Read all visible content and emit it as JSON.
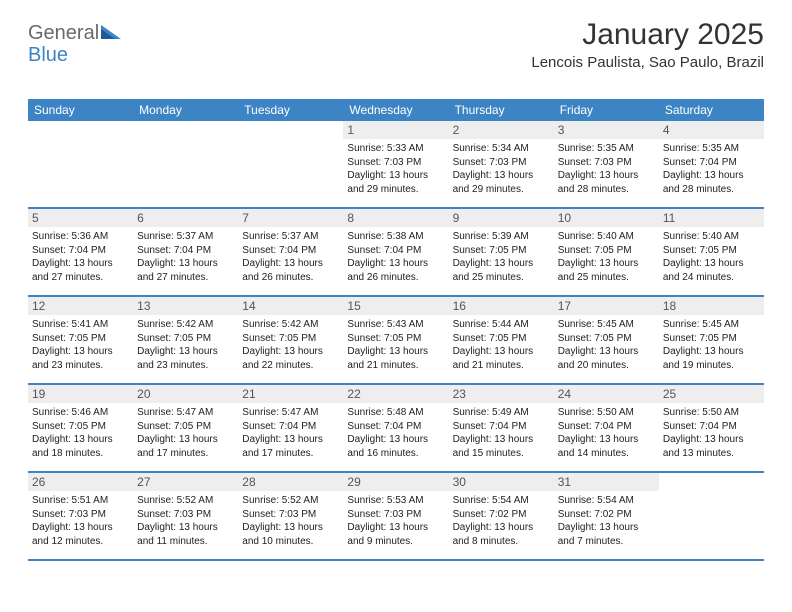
{
  "logo": {
    "text1": "General",
    "text2": "Blue"
  },
  "title": "January 2025",
  "location": "Lencois Paulista, Sao Paulo, Brazil",
  "colors": {
    "accent": "#3d84c4",
    "dayNumBg": "#eeeeee",
    "text": "#222222",
    "logoGray": "#6a6a6a"
  },
  "daysOfWeek": [
    "Sunday",
    "Monday",
    "Tuesday",
    "Wednesday",
    "Thursday",
    "Friday",
    "Saturday"
  ],
  "weeks": [
    [
      {
        "num": "",
        "sunrise": "",
        "sunset": "",
        "daylight": ""
      },
      {
        "num": "",
        "sunrise": "",
        "sunset": "",
        "daylight": ""
      },
      {
        "num": "",
        "sunrise": "",
        "sunset": "",
        "daylight": ""
      },
      {
        "num": "1",
        "sunrise": "Sunrise: 5:33 AM",
        "sunset": "Sunset: 7:03 PM",
        "daylight": "Daylight: 13 hours and 29 minutes."
      },
      {
        "num": "2",
        "sunrise": "Sunrise: 5:34 AM",
        "sunset": "Sunset: 7:03 PM",
        "daylight": "Daylight: 13 hours and 29 minutes."
      },
      {
        "num": "3",
        "sunrise": "Sunrise: 5:35 AM",
        "sunset": "Sunset: 7:03 PM",
        "daylight": "Daylight: 13 hours and 28 minutes."
      },
      {
        "num": "4",
        "sunrise": "Sunrise: 5:35 AM",
        "sunset": "Sunset: 7:04 PM",
        "daylight": "Daylight: 13 hours and 28 minutes."
      }
    ],
    [
      {
        "num": "5",
        "sunrise": "Sunrise: 5:36 AM",
        "sunset": "Sunset: 7:04 PM",
        "daylight": "Daylight: 13 hours and 27 minutes."
      },
      {
        "num": "6",
        "sunrise": "Sunrise: 5:37 AM",
        "sunset": "Sunset: 7:04 PM",
        "daylight": "Daylight: 13 hours and 27 minutes."
      },
      {
        "num": "7",
        "sunrise": "Sunrise: 5:37 AM",
        "sunset": "Sunset: 7:04 PM",
        "daylight": "Daylight: 13 hours and 26 minutes."
      },
      {
        "num": "8",
        "sunrise": "Sunrise: 5:38 AM",
        "sunset": "Sunset: 7:04 PM",
        "daylight": "Daylight: 13 hours and 26 minutes."
      },
      {
        "num": "9",
        "sunrise": "Sunrise: 5:39 AM",
        "sunset": "Sunset: 7:05 PM",
        "daylight": "Daylight: 13 hours and 25 minutes."
      },
      {
        "num": "10",
        "sunrise": "Sunrise: 5:40 AM",
        "sunset": "Sunset: 7:05 PM",
        "daylight": "Daylight: 13 hours and 25 minutes."
      },
      {
        "num": "11",
        "sunrise": "Sunrise: 5:40 AM",
        "sunset": "Sunset: 7:05 PM",
        "daylight": "Daylight: 13 hours and 24 minutes."
      }
    ],
    [
      {
        "num": "12",
        "sunrise": "Sunrise: 5:41 AM",
        "sunset": "Sunset: 7:05 PM",
        "daylight": "Daylight: 13 hours and 23 minutes."
      },
      {
        "num": "13",
        "sunrise": "Sunrise: 5:42 AM",
        "sunset": "Sunset: 7:05 PM",
        "daylight": "Daylight: 13 hours and 23 minutes."
      },
      {
        "num": "14",
        "sunrise": "Sunrise: 5:42 AM",
        "sunset": "Sunset: 7:05 PM",
        "daylight": "Daylight: 13 hours and 22 minutes."
      },
      {
        "num": "15",
        "sunrise": "Sunrise: 5:43 AM",
        "sunset": "Sunset: 7:05 PM",
        "daylight": "Daylight: 13 hours and 21 minutes."
      },
      {
        "num": "16",
        "sunrise": "Sunrise: 5:44 AM",
        "sunset": "Sunset: 7:05 PM",
        "daylight": "Daylight: 13 hours and 21 minutes."
      },
      {
        "num": "17",
        "sunrise": "Sunrise: 5:45 AM",
        "sunset": "Sunset: 7:05 PM",
        "daylight": "Daylight: 13 hours and 20 minutes."
      },
      {
        "num": "18",
        "sunrise": "Sunrise: 5:45 AM",
        "sunset": "Sunset: 7:05 PM",
        "daylight": "Daylight: 13 hours and 19 minutes."
      }
    ],
    [
      {
        "num": "19",
        "sunrise": "Sunrise: 5:46 AM",
        "sunset": "Sunset: 7:05 PM",
        "daylight": "Daylight: 13 hours and 18 minutes."
      },
      {
        "num": "20",
        "sunrise": "Sunrise: 5:47 AM",
        "sunset": "Sunset: 7:05 PM",
        "daylight": "Daylight: 13 hours and 17 minutes."
      },
      {
        "num": "21",
        "sunrise": "Sunrise: 5:47 AM",
        "sunset": "Sunset: 7:04 PM",
        "daylight": "Daylight: 13 hours and 17 minutes."
      },
      {
        "num": "22",
        "sunrise": "Sunrise: 5:48 AM",
        "sunset": "Sunset: 7:04 PM",
        "daylight": "Daylight: 13 hours and 16 minutes."
      },
      {
        "num": "23",
        "sunrise": "Sunrise: 5:49 AM",
        "sunset": "Sunset: 7:04 PM",
        "daylight": "Daylight: 13 hours and 15 minutes."
      },
      {
        "num": "24",
        "sunrise": "Sunrise: 5:50 AM",
        "sunset": "Sunset: 7:04 PM",
        "daylight": "Daylight: 13 hours and 14 minutes."
      },
      {
        "num": "25",
        "sunrise": "Sunrise: 5:50 AM",
        "sunset": "Sunset: 7:04 PM",
        "daylight": "Daylight: 13 hours and 13 minutes."
      }
    ],
    [
      {
        "num": "26",
        "sunrise": "Sunrise: 5:51 AM",
        "sunset": "Sunset: 7:03 PM",
        "daylight": "Daylight: 13 hours and 12 minutes."
      },
      {
        "num": "27",
        "sunrise": "Sunrise: 5:52 AM",
        "sunset": "Sunset: 7:03 PM",
        "daylight": "Daylight: 13 hours and 11 minutes."
      },
      {
        "num": "28",
        "sunrise": "Sunrise: 5:52 AM",
        "sunset": "Sunset: 7:03 PM",
        "daylight": "Daylight: 13 hours and 10 minutes."
      },
      {
        "num": "29",
        "sunrise": "Sunrise: 5:53 AM",
        "sunset": "Sunset: 7:03 PM",
        "daylight": "Daylight: 13 hours and 9 minutes."
      },
      {
        "num": "30",
        "sunrise": "Sunrise: 5:54 AM",
        "sunset": "Sunset: 7:02 PM",
        "daylight": "Daylight: 13 hours and 8 minutes."
      },
      {
        "num": "31",
        "sunrise": "Sunrise: 5:54 AM",
        "sunset": "Sunset: 7:02 PM",
        "daylight": "Daylight: 13 hours and 7 minutes."
      },
      {
        "num": "",
        "sunrise": "",
        "sunset": "",
        "daylight": ""
      }
    ]
  ]
}
